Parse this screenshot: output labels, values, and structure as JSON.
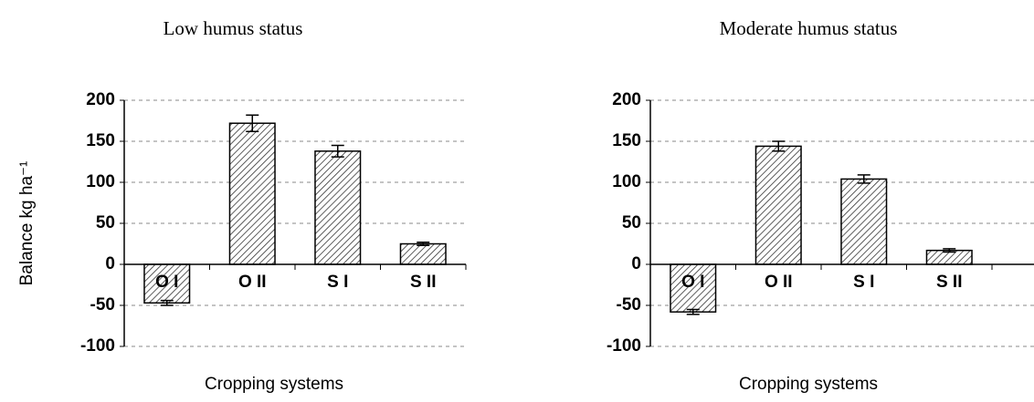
{
  "chart_data": [
    {
      "type": "bar",
      "title": "Low humus status",
      "ylabel": "Balance kg ha⁻¹",
      "xlabel": "Cropping systems",
      "categories": [
        "O I",
        "O II",
        "S I",
        "S II"
      ],
      "values": [
        -47,
        172,
        138,
        25
      ],
      "errors": [
        3,
        10,
        7,
        2
      ],
      "ylim": [
        -100,
        200
      ],
      "yticks": [
        -100,
        -50,
        0,
        50,
        100,
        150,
        200
      ],
      "grid": true,
      "color": "#ffffff"
    },
    {
      "type": "bar",
      "title": "Moderate humus status",
      "xlabel": "Cropping systems",
      "categories": [
        "O I",
        "O II",
        "S I",
        "S II"
      ],
      "values": [
        -58,
        144,
        104,
        17
      ],
      "errors": [
        3,
        6,
        5,
        2
      ],
      "ylim": [
        -100,
        200
      ],
      "yticks": [
        -100,
        -50,
        0,
        50,
        100,
        150,
        200
      ],
      "grid": true,
      "color": "#ffffff"
    }
  ]
}
